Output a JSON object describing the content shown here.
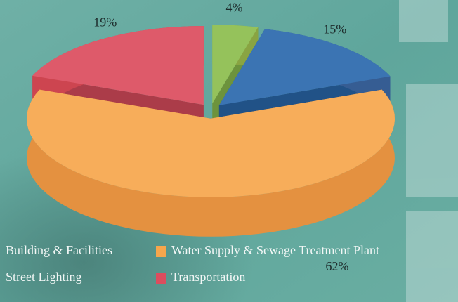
{
  "chart_data": {
    "type": "pie",
    "categories": [
      "Street Lighting",
      "Building & Facilities",
      "Water Supply & Sewage Treatment Plant",
      "Transportation"
    ],
    "values": [
      4,
      15,
      62,
      19
    ],
    "value_labels": [
      "4%",
      "15%",
      "62%",
      "19%"
    ],
    "colors": [
      "#8cbd4e",
      "#2b69ad",
      "#f7a64c",
      "#dc4d5e"
    ],
    "legend": "bottom"
  }
}
